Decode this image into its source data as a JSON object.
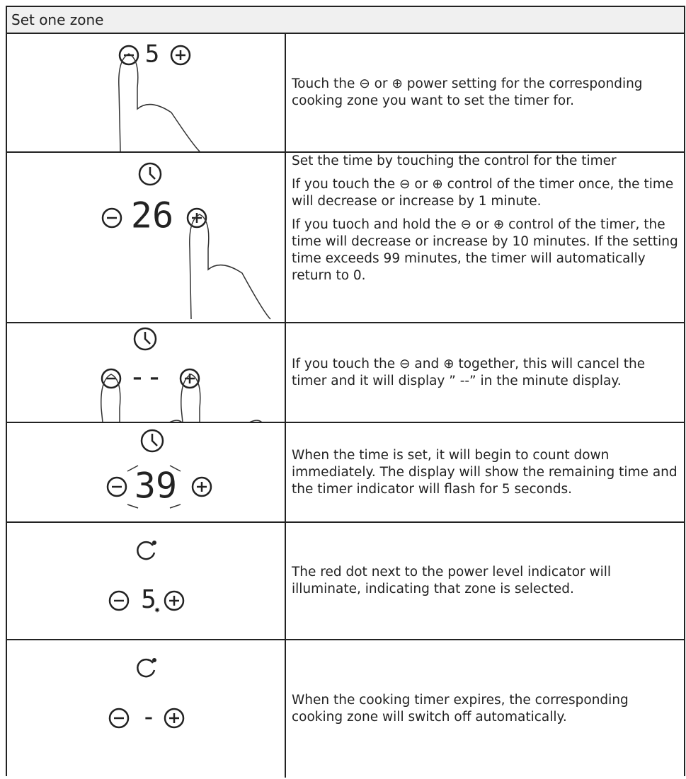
{
  "header": {
    "title": "Set one zone"
  },
  "rows": [
    {
      "display": "5",
      "paragraphs": [
        "Touch the ⊖ or ⊕ power setting for the corresponding cooking zone you want to set the timer for."
      ]
    },
    {
      "display": "26",
      "paragraphs": [
        "Set the time by touching the control for the timer",
        "If you touch the ⊖ or ⊕ control of the timer once, the time will decrease or increase by 1 minute.",
        "If you tuoch and hold the ⊖ or ⊕ control of the timer, the time will decrease or increase by 10 minutes. If the setting time exceeds 99 minutes, the timer will automatically return to 0."
      ]
    },
    {
      "display": "--",
      "paragraphs": [
        "If you touch the ⊖ and ⊕ together, this will cancel the timer and it will display ” --” in the minute display."
      ]
    },
    {
      "display": "39",
      "paragraphs": [
        "When the time is set, it will begin to count down immediately. The display will show the remaining time and the timer indicator will flash for 5 seconds."
      ]
    },
    {
      "display": "5",
      "paragraphs": [
        "The red dot next to the power level indicator will illuminate, indicating that zone is selected."
      ]
    },
    {
      "display": "-",
      "paragraphs": [
        "When the cooking timer expires, the corresponding cooking zone will switch off automatically."
      ]
    }
  ]
}
